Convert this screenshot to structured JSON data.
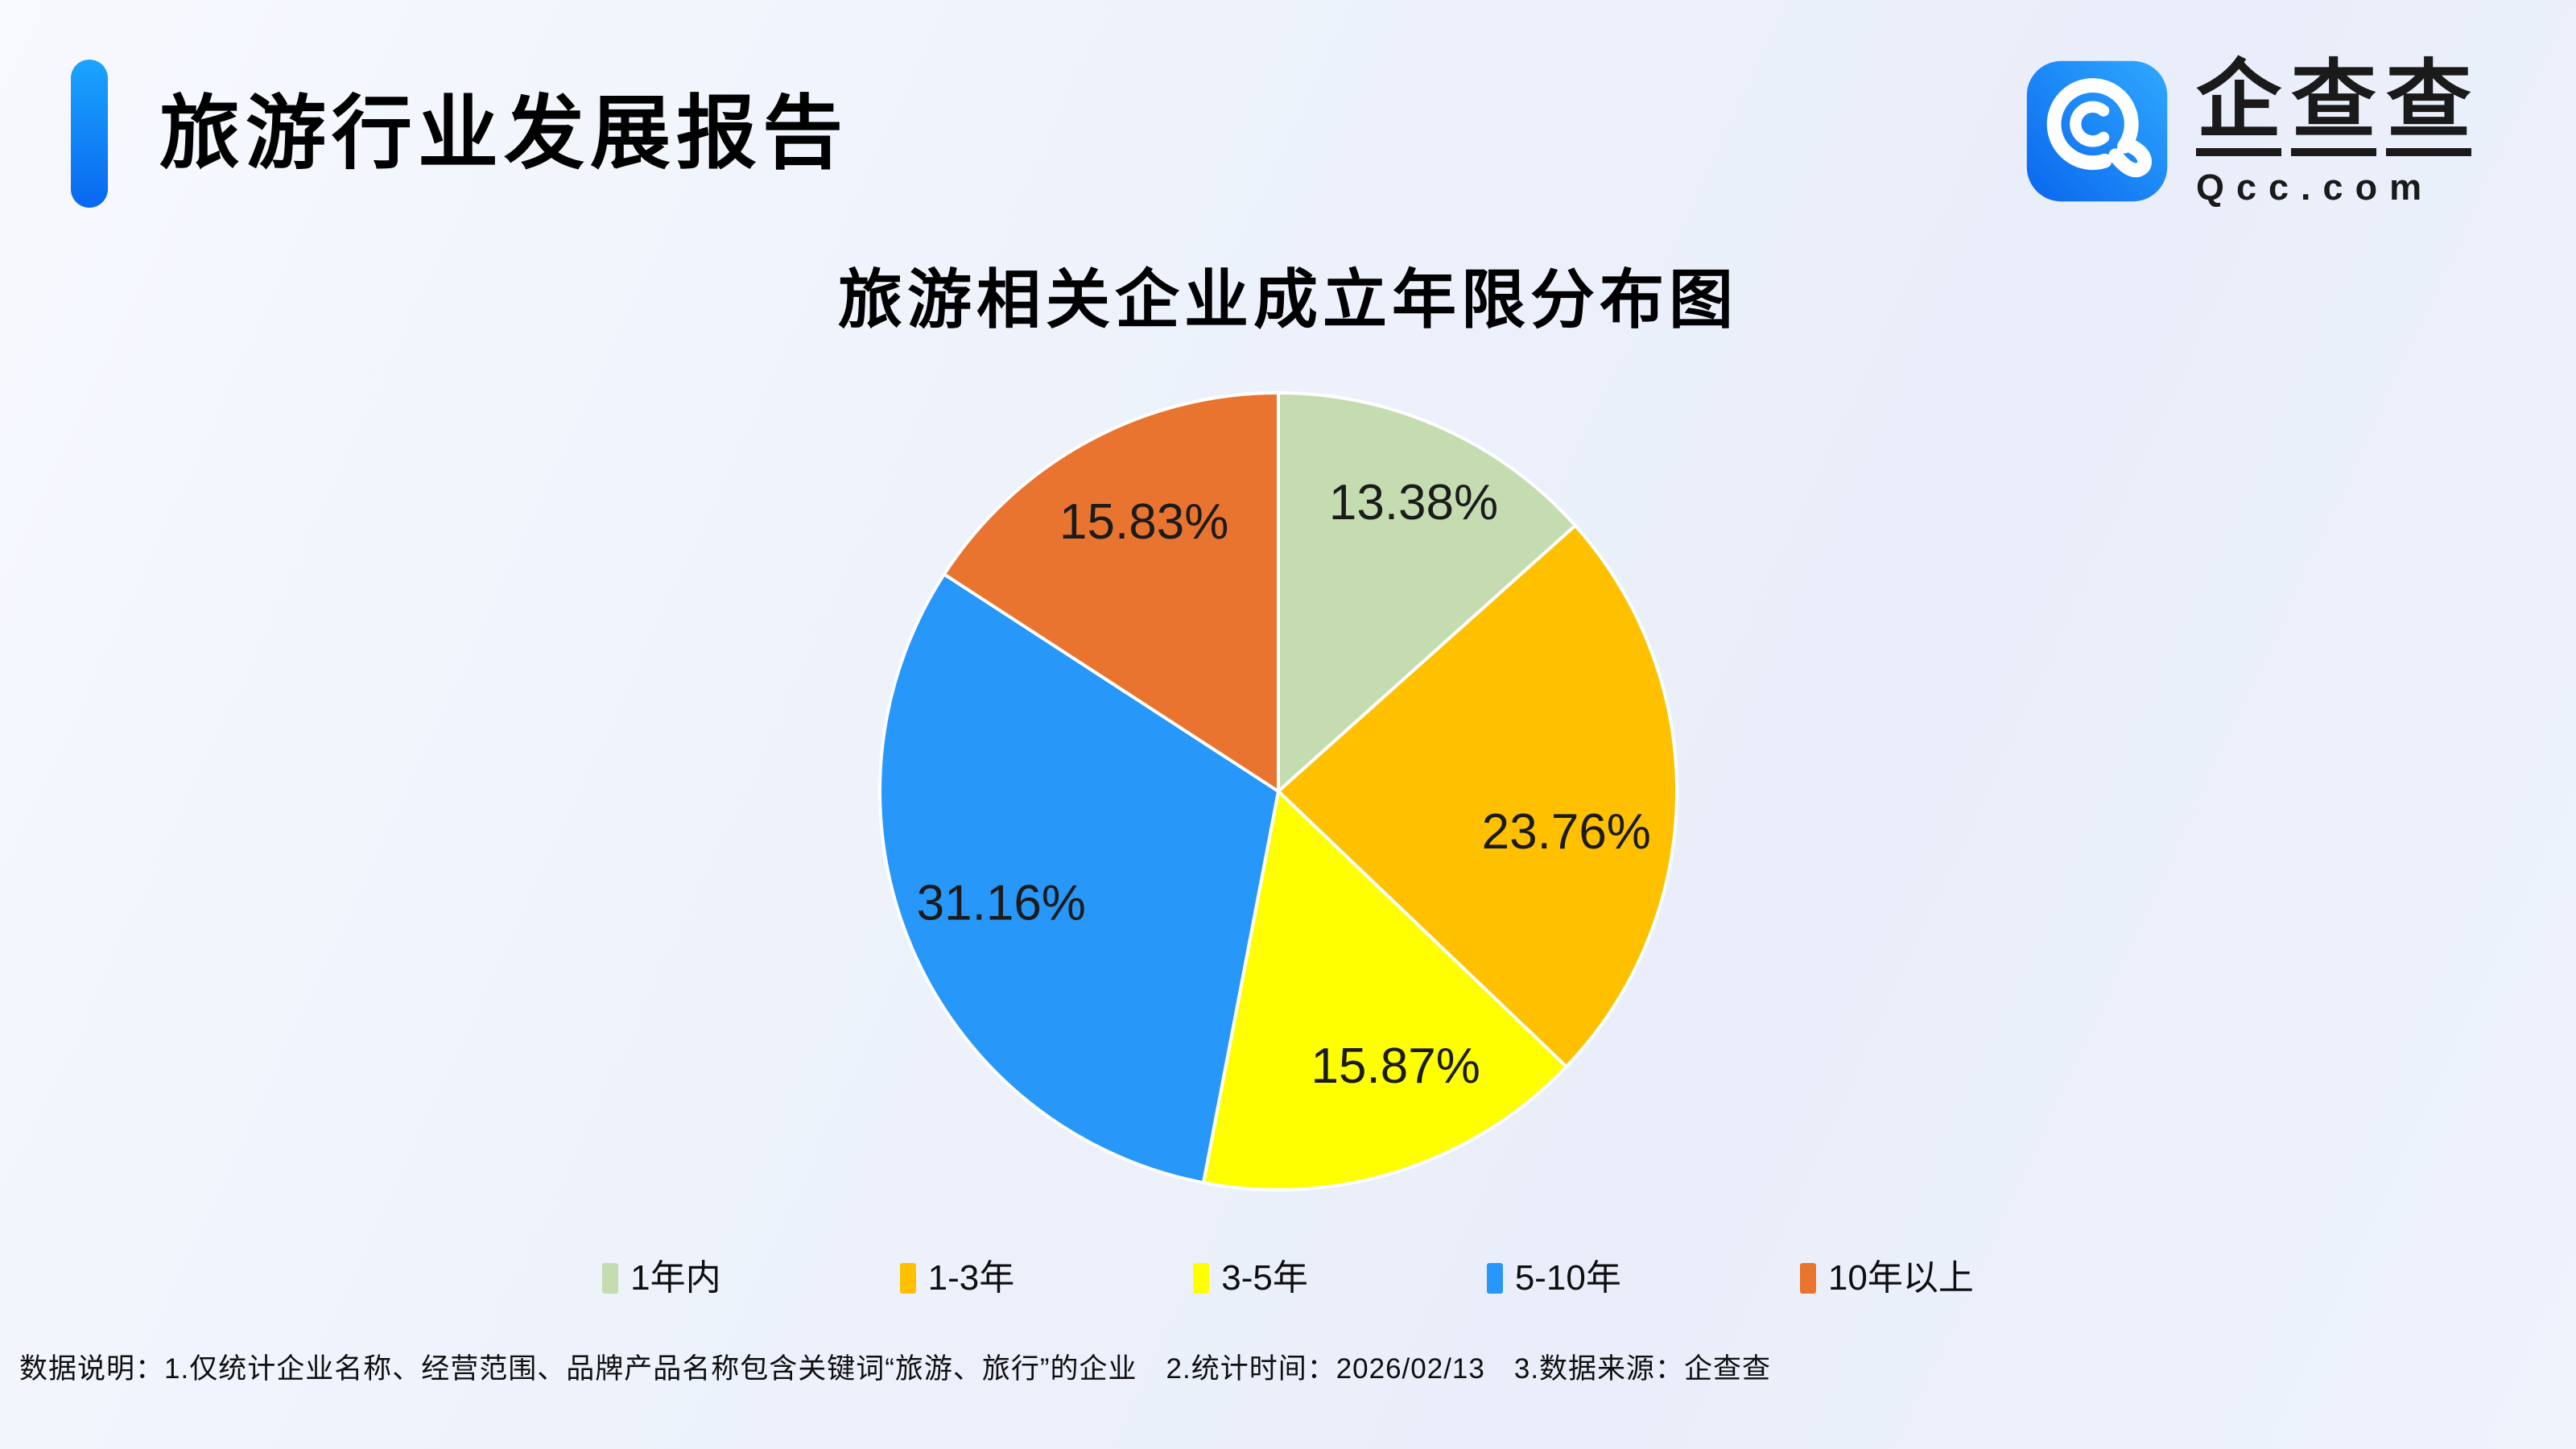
{
  "page": {
    "background_color": "#edf1fb"
  },
  "header": {
    "title": "旅游行业发展报告",
    "accent_bar_color_top": "#1ba4fe",
    "accent_bar_color_bottom": "#0968f0"
  },
  "brand": {
    "name": "企查查",
    "domain": "Qcc.com",
    "icon": "qcc-magnifier-icon",
    "icon_color_dark": "#0a66ee",
    "icon_color_light": "#2fa9ff"
  },
  "chart_data": {
    "type": "pie",
    "title": "旅游相关企业成立年限分布图",
    "categories": [
      "1年内",
      "1-3年",
      "3-5年",
      "5-10年",
      "10年以上"
    ],
    "values": [
      13.38,
      23.76,
      15.87,
      31.16,
      15.83
    ],
    "labels": [
      "13.38%",
      "23.76%",
      "15.87%",
      "31.16%",
      "15.83%"
    ],
    "colors": [
      "#c5dcb1",
      "#ffc000",
      "#ffff00",
      "#2797fa",
      "#e97430"
    ],
    "start_angle_deg": 0,
    "direction": "clockwise",
    "label_position": "inside",
    "label_layout": [
      {
        "angle": 25.1,
        "r": 0.8
      },
      {
        "angle": 98.0,
        "r": 0.73
      },
      {
        "angle": 156.9,
        "r": 0.75
      },
      {
        "angle": 248.0,
        "r": 0.75
      },
      {
        "angle": 333.5,
        "r": 0.755
      }
    ],
    "separator_color": "#ffffff",
    "legend_position": "bottom"
  },
  "footnote": {
    "text": "数据说明：1.仅统计企业名称、经营范围、品牌产品名称包含关键词“旅游、旅行”的企业　2.统计时间：2026/02/13　3.数据来源：企查查"
  }
}
